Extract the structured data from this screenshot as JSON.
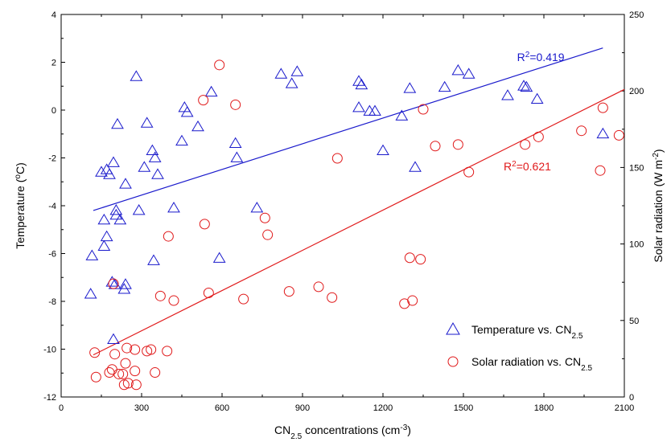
{
  "chart_data": {
    "type": "scatter",
    "xlabel": {
      "text": "CN",
      "sub": "2.5",
      "tail": " concentrations (cm",
      "sup": "-3",
      "end": ")"
    },
    "ylabel_left": {
      "text": "Temperature (",
      "sup": "o",
      "end": "C)"
    },
    "ylabel_right": {
      "text": "Solar radiation (W m",
      "sup": "-2",
      "end": ")"
    },
    "xlim": [
      0,
      2100
    ],
    "ylim_left": [
      -12,
      4
    ],
    "ylim_right": [
      0,
      250
    ],
    "x_ticks": [
      0,
      300,
      600,
      900,
      1200,
      1500,
      1800,
      2100
    ],
    "y_left_ticks": [
      -12,
      -10,
      -8,
      -6,
      -4,
      -2,
      0,
      2,
      4
    ],
    "y_right_ticks": [
      0,
      50,
      100,
      150,
      200,
      250
    ],
    "grid": false,
    "legend_position": "bottom-right",
    "colors": {
      "temperature": "#1a1acc",
      "solar": "#e0191a"
    },
    "series": [
      {
        "name": "Temperature vs. CN",
        "name_sub": "2.5",
        "marker": "triangle",
        "axis": "left",
        "points": [
          [
            110,
            -7.7
          ],
          [
            115,
            -6.1
          ],
          [
            150,
            -2.6
          ],
          [
            160,
            -5.7
          ],
          [
            160,
            -4.6
          ],
          [
            170,
            -2.5
          ],
          [
            170,
            -5.3
          ],
          [
            180,
            -2.7
          ],
          [
            190,
            -7.2
          ],
          [
            195,
            -2.2
          ],
          [
            195,
            -9.6
          ],
          [
            200,
            -7.3
          ],
          [
            205,
            -4.4
          ],
          [
            205,
            -4.2
          ],
          [
            210,
            -0.6
          ],
          [
            220,
            -4.6
          ],
          [
            235,
            -7.5
          ],
          [
            240,
            -7.3
          ],
          [
            240,
            -3.1
          ],
          [
            280,
            1.4
          ],
          [
            290,
            -4.2
          ],
          [
            310,
            -2.4
          ],
          [
            320,
            -0.55
          ],
          [
            340,
            -1.7
          ],
          [
            345,
            -6.3
          ],
          [
            350,
            -2.0
          ],
          [
            360,
            -2.7
          ],
          [
            420,
            -4.1
          ],
          [
            450,
            -1.3
          ],
          [
            460,
            0.1
          ],
          [
            470,
            -0.1
          ],
          [
            510,
            -0.7
          ],
          [
            560,
            0.75
          ],
          [
            590,
            -6.2
          ],
          [
            650,
            -1.4
          ],
          [
            655,
            -2.0
          ],
          [
            730,
            -4.1
          ],
          [
            820,
            1.5
          ],
          [
            860,
            1.1
          ],
          [
            880,
            1.6
          ],
          [
            1110,
            1.2
          ],
          [
            1110,
            0.1
          ],
          [
            1120,
            1.05
          ],
          [
            1150,
            -0.05
          ],
          [
            1170,
            -0.05
          ],
          [
            1200,
            -1.7
          ],
          [
            1270,
            -0.25
          ],
          [
            1300,
            0.9
          ],
          [
            1320,
            -2.4
          ],
          [
            1430,
            0.95
          ],
          [
            1480,
            1.65
          ],
          [
            1520,
            1.5
          ],
          [
            1665,
            0.6
          ],
          [
            1725,
            1.0
          ],
          [
            1735,
            0.95
          ],
          [
            1775,
            0.45
          ],
          [
            2020,
            -1.0
          ]
        ],
        "fit": {
          "x": [
            120,
            2020
          ],
          "y": [
            -4.2,
            2.6
          ],
          "label": "R",
          "label_sup": "2",
          "label_tail": "=0.419",
          "label_at": [
            1700,
            2.05
          ]
        }
      },
      {
        "name": "Solar radiation vs. CN",
        "name_sub": "2.5",
        "marker": "circle",
        "axis": "right",
        "points": [
          [
            125,
            29
          ],
          [
            130,
            13
          ],
          [
            180,
            16
          ],
          [
            190,
            18
          ],
          [
            195,
            74
          ],
          [
            200,
            28
          ],
          [
            215,
            15
          ],
          [
            230,
            15
          ],
          [
            235,
            8
          ],
          [
            240,
            22
          ],
          [
            250,
            9
          ],
          [
            245,
            32
          ],
          [
            275,
            17
          ],
          [
            275,
            31
          ],
          [
            280,
            8
          ],
          [
            320,
            30
          ],
          [
            335,
            31
          ],
          [
            350,
            16
          ],
          [
            370,
            66
          ],
          [
            395,
            30
          ],
          [
            400,
            105
          ],
          [
            420,
            63
          ],
          [
            530,
            194
          ],
          [
            535,
            113
          ],
          [
            550,
            68
          ],
          [
            590,
            217
          ],
          [
            650,
            191
          ],
          [
            680,
            64
          ],
          [
            760,
            117
          ],
          [
            770,
            106
          ],
          [
            850,
            69
          ],
          [
            960,
            72
          ],
          [
            1010,
            65
          ],
          [
            1030,
            156
          ],
          [
            1280,
            61
          ],
          [
            1300,
            91
          ],
          [
            1310,
            63
          ],
          [
            1340,
            90
          ],
          [
            1350,
            188
          ],
          [
            1395,
            164
          ],
          [
            1480,
            165
          ],
          [
            1520,
            147
          ],
          [
            1730,
            165
          ],
          [
            1780,
            170
          ],
          [
            1940,
            174
          ],
          [
            2010,
            148
          ],
          [
            2020,
            189
          ],
          [
            2080,
            171
          ]
        ],
        "fit": {
          "x": [
            120,
            2100
          ],
          "y": [
            27.5,
            201
          ],
          "label": "R",
          "label_sup": "2",
          "label_tail": "=0.621",
          "label_at": [
            1650,
            148
          ]
        }
      }
    ]
  }
}
